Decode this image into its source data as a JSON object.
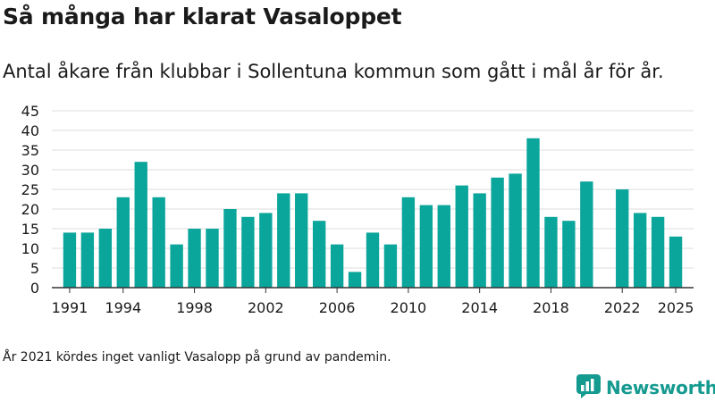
{
  "title": "Så många har klarat Vasaloppet",
  "subtitle": "Antal åkare från klubbar i Sollentuna kommun som gått i mål år för år.",
  "footnote": "År 2021 kördes inget vanligt Vasalopp på grund av pandemin.",
  "brand": {
    "name": "Newsworthy",
    "icon": "newsworthy-logo-icon",
    "color": "#159a90"
  },
  "colors": {
    "bar": "#0aa59b",
    "grid": "#dddddd",
    "axis": "#333333",
    "text": "#1a1a1a"
  },
  "chart_data": {
    "type": "bar",
    "title": "Så många har klarat Vasaloppet",
    "x": [
      1991,
      1992,
      1993,
      1994,
      1995,
      1996,
      1997,
      1998,
      1999,
      2000,
      2001,
      2002,
      2003,
      2004,
      2005,
      2006,
      2007,
      2008,
      2009,
      2010,
      2011,
      2012,
      2013,
      2014,
      2015,
      2016,
      2017,
      2018,
      2019,
      2020,
      2022,
      2023,
      2024,
      2025
    ],
    "values": [
      14,
      14,
      15,
      23,
      32,
      23,
      11,
      15,
      15,
      20,
      18,
      19,
      24,
      24,
      17,
      11,
      4,
      14,
      11,
      23,
      21,
      21,
      26,
      24,
      28,
      29,
      38,
      18,
      17,
      27,
      25,
      19,
      18,
      13
    ],
    "xlim": [
      1990,
      2026
    ],
    "ylim": [
      0,
      45
    ],
    "yticks": [
      0,
      5,
      10,
      15,
      20,
      25,
      30,
      35,
      40,
      45
    ],
    "xticks": [
      1991,
      1994,
      1998,
      2002,
      2006,
      2010,
      2014,
      2018,
      2022,
      2025
    ],
    "grid": true,
    "legend": "none",
    "xlabel": "",
    "ylabel": ""
  }
}
